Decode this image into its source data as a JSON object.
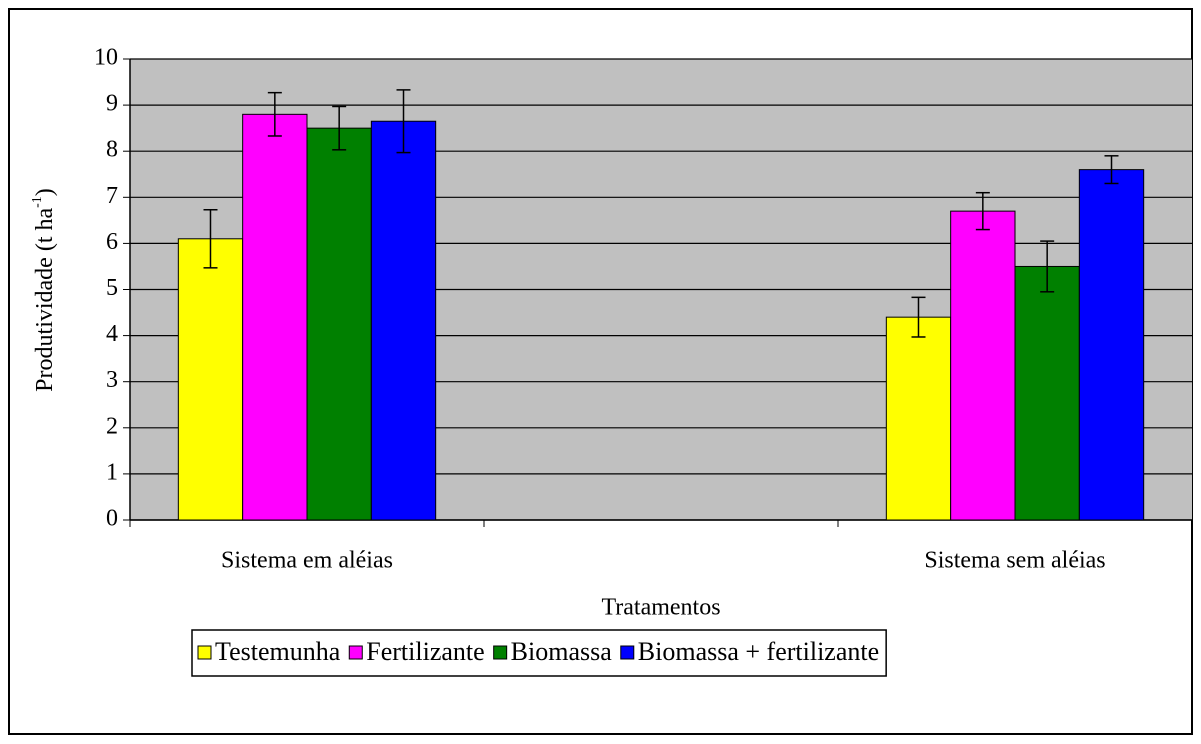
{
  "chart_data": {
    "type": "bar",
    "y_label": "Produtividade (t ha",
    "y_label_sup": "-1",
    "y_label_end": ")",
    "x_label": "Tratamentos",
    "categories": [
      "Sistema em aléias",
      null,
      "Sistema sem aléias"
    ],
    "series": [
      {
        "name": "Testemunha",
        "color": "#ffff00",
        "values": [
          6.1,
          null,
          4.4
        ],
        "errors": [
          0.63,
          null,
          0.43
        ]
      },
      {
        "name": "Fertilizante",
        "color": "#ff00ff",
        "values": [
          8.8,
          null,
          6.7
        ],
        "errors": [
          0.47,
          null,
          0.4
        ]
      },
      {
        "name": "Biomassa",
        "color": "#008000",
        "values": [
          8.5,
          null,
          5.5
        ],
        "errors": [
          0.47,
          null,
          0.55
        ]
      },
      {
        "name": "Biomassa + fertilizante",
        "color": "#0000ff",
        "values": [
          8.65,
          null,
          7.6
        ],
        "errors": [
          0.68,
          null,
          0.3
        ]
      }
    ],
    "ylim": [
      0,
      10
    ],
    "yticks": [
      0,
      1,
      2,
      3,
      4,
      5,
      6,
      7,
      8,
      9,
      10
    ],
    "grid": true,
    "plot_background": "#c0c0c0"
  }
}
